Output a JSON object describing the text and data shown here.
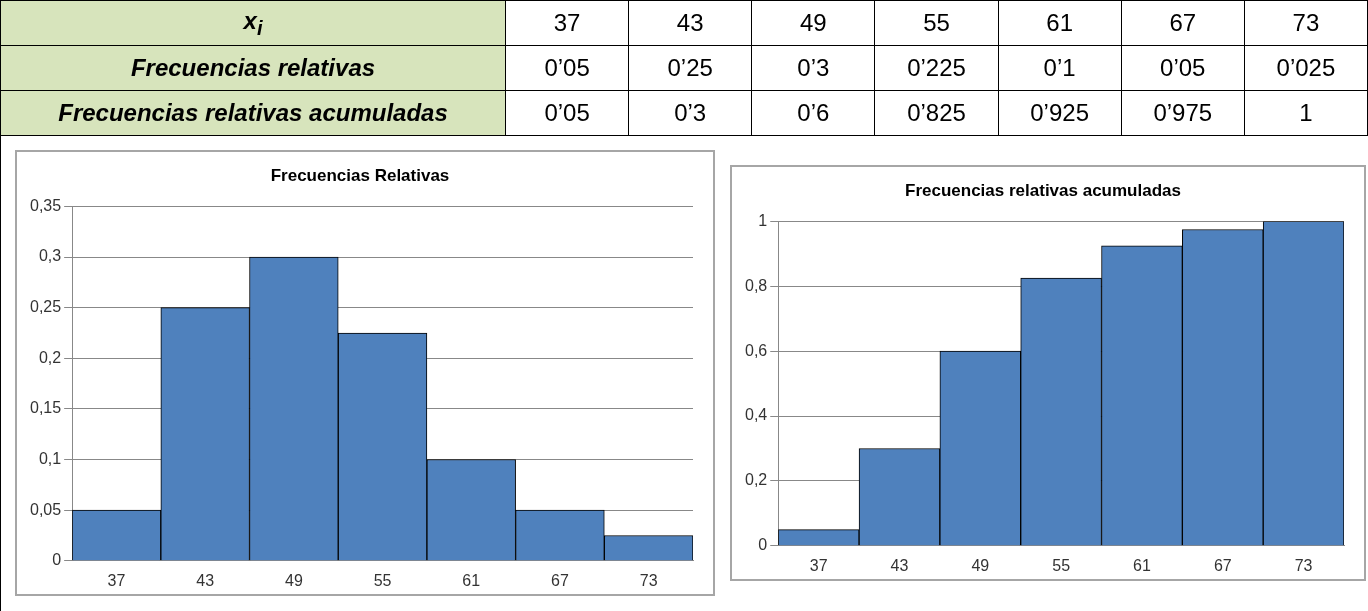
{
  "chart_data": [
    {
      "type": "heatmap",
      "xlabel": "x$_{i}$",
      "categories": [
        "37",
        "43",
        "49",
        "55",
        "61",
        "67",
        "73"
      ],
      "y_categories": [
        "Frecuencias relativas",
        "Frecuencias relativas acumuladas"
      ],
      "cells": [
        [
          null,
          null,
          null,
          null,
          null,
          null,
          null
        ],
        [
          null,
          null,
          null,
          null,
          null,
          null,
          null
        ]
      ],
      "cell_labels": [
        [
          "0’05",
          "0’25",
          "0’3",
          "0’225",
          "0’1",
          "0’05",
          "0’025"
        ],
        [
          "0’05",
          "0’3",
          "0’6",
          "0’825",
          "0’925",
          "0’975",
          "1"
        ]
      ]
    },
    {
      "type": "bar",
      "title": "Frecuencias Relativas",
      "categories": [
        "37",
        "43",
        "49",
        "55",
        "61",
        "67",
        "73"
      ],
      "values": [
        0.05,
        0.25,
        0.3,
        0.225,
        0.1,
        0.05,
        0.025
      ],
      "color": "#4f81bd",
      "ylim": [
        0,
        0.35
      ],
      "yticks": [
        {
          "value": 0,
          "label": "0"
        },
        {
          "value": 0.05,
          "label": "0,05"
        },
        {
          "value": 0.1,
          "label": "0,1"
        },
        {
          "value": 0.15,
          "label": "0,15"
        },
        {
          "value": 0.2,
          "label": "0,2"
        },
        {
          "value": 0.25,
          "label": "0,25"
        },
        {
          "value": 0.3,
          "label": "0,3"
        },
        {
          "value": 0.35,
          "label": "0,35"
        }
      ],
      "grid": "y"
    },
    {
      "type": "bar",
      "title": "Frecuencias relativas acumuladas",
      "categories": [
        "37",
        "43",
        "49",
        "55",
        "61",
        "67",
        "73"
      ],
      "values": [
        0.05,
        0.3,
        0.6,
        0.825,
        0.925,
        0.975,
        1
      ],
      "color": "#4f81bd",
      "ylim": [
        0,
        1
      ],
      "yticks": [
        {
          "value": 0,
          "label": "0"
        },
        {
          "value": 0.2,
          "label": "0,2"
        },
        {
          "value": 0.4,
          "label": "0,4"
        },
        {
          "value": 0.6,
          "label": "0,6"
        },
        {
          "value": 0.8,
          "label": "0,8"
        },
        {
          "value": 1,
          "label": "1"
        }
      ],
      "grid": "y"
    }
  ]
}
